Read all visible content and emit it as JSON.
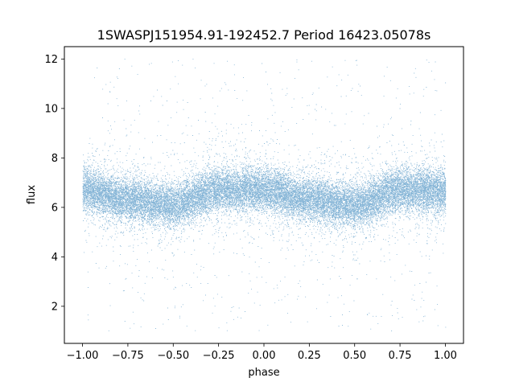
{
  "chart_data": {
    "type": "scatter",
    "title": "1SWASPJ151954.91-192452.7 Period 16423.05078s",
    "xlabel": "phase",
    "ylabel": "flux",
    "xlim": [
      -1.1,
      1.1
    ],
    "ylim": [
      0.5,
      12.5
    ],
    "xticks": [
      -1.0,
      -0.75,
      -0.5,
      -0.25,
      0.0,
      0.25,
      0.5,
      0.75,
      1.0
    ],
    "xtick_labels": [
      "−1.00",
      "−0.75",
      "−0.50",
      "−0.25",
      "0.00",
      "0.25",
      "0.50",
      "0.75",
      "1.00"
    ],
    "yticks": [
      2,
      4,
      6,
      8,
      10,
      12
    ],
    "ytick_labels": [
      "2",
      "4",
      "6",
      "8",
      "10",
      "12"
    ],
    "grid": false,
    "point_color": "#1f77b4",
    "series": [
      {
        "points_description": "dense phase-folded light curve, approx. 120000 points spanning phase -1 to 1",
        "phase_range": [
          -1.0,
          1.0
        ],
        "flux_range": [
          1.0,
          12.0
        ],
        "trend_phase": [
          -1.0,
          -0.75,
          -0.5,
          -0.25,
          0.0,
          0.25,
          0.5,
          0.75,
          1.0
        ],
        "trend_flux": [
          6.7,
          6.3,
          6.1,
          6.7,
          6.7,
          6.3,
          6.1,
          6.7,
          6.7
        ],
        "core_scatter": 0.6
      }
    ]
  }
}
